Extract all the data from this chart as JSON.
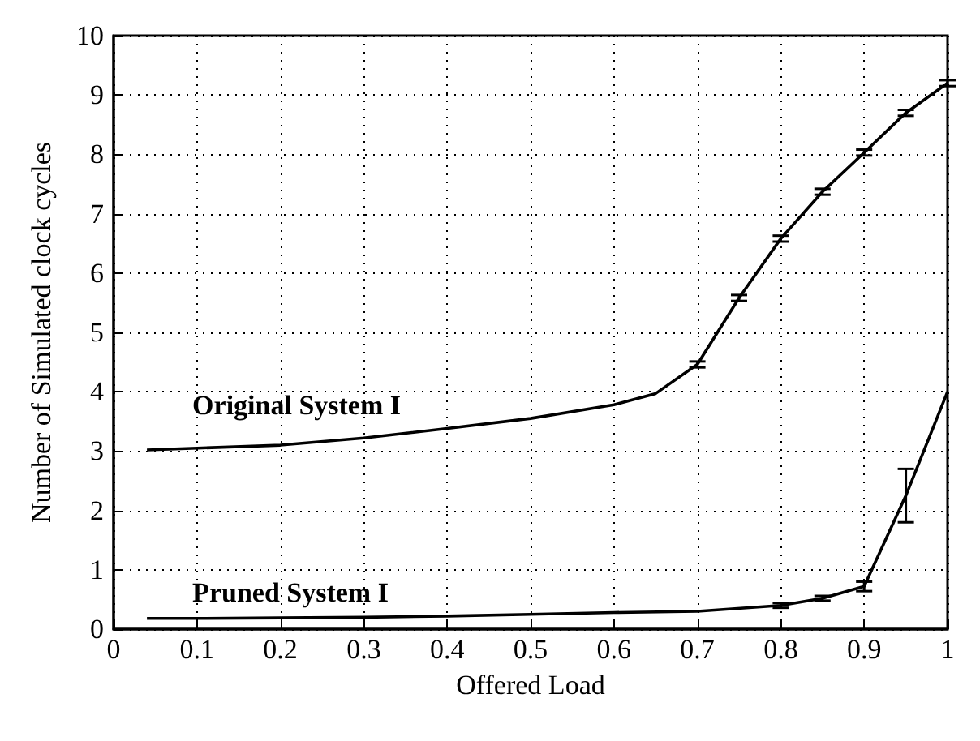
{
  "chart_data": {
    "type": "line",
    "xlabel": "Offered Load",
    "ylabel": "Number of Simulated clock cycles",
    "xlim": [
      0,
      1
    ],
    "ylim": [
      0,
      10
    ],
    "xticks": [
      0,
      0.1,
      0.2,
      0.3,
      0.4,
      0.5,
      0.6,
      0.7,
      0.8,
      0.9,
      1
    ],
    "yticks": [
      0,
      1,
      2,
      3,
      4,
      5,
      6,
      7,
      8,
      9,
      10
    ],
    "grid": true,
    "marker": "none",
    "line_style": "solid",
    "legend": false,
    "series": [
      {
        "name": "Original System I",
        "color": "#000000",
        "x": [
          0.04,
          0.1,
          0.2,
          0.3,
          0.4,
          0.5,
          0.6,
          0.65,
          0.7,
          0.75,
          0.8,
          0.85,
          0.9,
          0.95,
          1.0
        ],
        "values": [
          3.02,
          3.05,
          3.1,
          3.22,
          3.38,
          3.55,
          3.78,
          3.97,
          4.46,
          5.58,
          6.58,
          7.37,
          8.03,
          8.7,
          9.2
        ],
        "errors": [
          null,
          null,
          null,
          null,
          null,
          null,
          null,
          null,
          0.05,
          0.05,
          0.05,
          0.05,
          0.05,
          0.05,
          0.05
        ]
      },
      {
        "name": "Pruned System I",
        "color": "#000000",
        "x": [
          0.04,
          0.1,
          0.2,
          0.3,
          0.4,
          0.5,
          0.6,
          0.7,
          0.8,
          0.85,
          0.9,
          0.95,
          1.0
        ],
        "values": [
          0.18,
          0.18,
          0.19,
          0.2,
          0.22,
          0.25,
          0.28,
          0.3,
          0.4,
          0.52,
          0.72,
          2.25,
          4.0
        ],
        "errors": [
          null,
          null,
          null,
          null,
          null,
          null,
          null,
          null,
          0.04,
          0.04,
          0.08,
          [
            1.8,
            2.7
          ],
          null
        ]
      }
    ]
  }
}
